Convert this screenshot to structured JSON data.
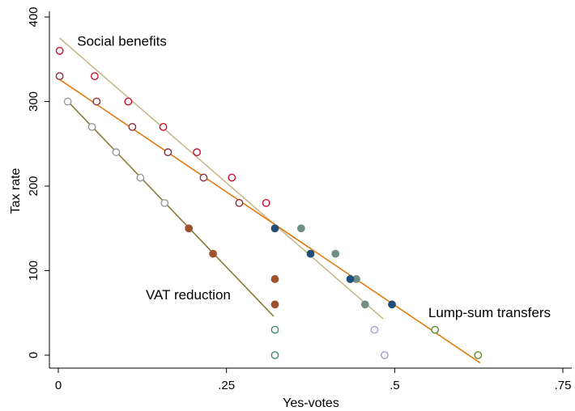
{
  "chart_data": {
    "type": "scatter",
    "xlabel": "Yes-votes",
    "ylabel": "Tax rate",
    "xlim": [
      0,
      0.75
    ],
    "ylim": [
      -20,
      410
    ],
    "x_ticks": [
      {
        "value": 0,
        "label": "0"
      },
      {
        "value": 0.25,
        "label": ".25"
      },
      {
        "value": 0.5,
        "label": ".5"
      },
      {
        "value": 0.75,
        "label": ".75"
      }
    ],
    "y_ticks": [
      {
        "value": 0,
        "label": "0"
      },
      {
        "value": 100,
        "label": "100"
      },
      {
        "value": 200,
        "label": "200"
      },
      {
        "value": 300,
        "label": "300"
      },
      {
        "value": 400,
        "label": "400"
      }
    ],
    "grid": false,
    "legend": "none",
    "annotations": [
      {
        "text": "Social benefits",
        "x": 0.028,
        "y": 366
      },
      {
        "text": "VAT reduction",
        "x": 0.13,
        "y": 66
      },
      {
        "text": "Lump-sum transfers",
        "x": 0.55,
        "y": 45
      }
    ],
    "series": [
      {
        "name": "Social benefits",
        "color": "#c8102e",
        "points": [
          {
            "x": 0.002,
            "y": 360,
            "hollow": true
          },
          {
            "x": 0.054,
            "y": 330,
            "hollow": true
          },
          {
            "x": 0.104,
            "y": 300,
            "hollow": true
          },
          {
            "x": 0.156,
            "y": 270,
            "hollow": true
          },
          {
            "x": 0.206,
            "y": 240,
            "hollow": true
          },
          {
            "x": 0.258,
            "y": 210,
            "hollow": true
          },
          {
            "x": 0.309,
            "y": 180,
            "hollow": true
          },
          {
            "x": 0.361,
            "y": 150,
            "hollow": false,
            "color": "#6f8f82"
          },
          {
            "x": 0.412,
            "y": 120,
            "hollow": false,
            "color": "#6f8f82"
          },
          {
            "x": 0.443,
            "y": 90,
            "hollow": false,
            "color": "#6f8f82"
          },
          {
            "x": 0.456,
            "y": 60,
            "hollow": false,
            "color": "#6f8f82"
          },
          {
            "x": 0.47,
            "y": 30,
            "hollow": true,
            "color": "#a99bd1"
          },
          {
            "x": 0.485,
            "y": 0,
            "hollow": true,
            "color": "#a99bd1"
          }
        ],
        "fit": {
          "x1": 0.002,
          "y1": 375,
          "x2": 0.483,
          "y2": 43,
          "color": "#c7b98a"
        }
      },
      {
        "name": "Lump-sum transfers",
        "color": "#8e2b3c",
        "points": [
          {
            "x": 0.002,
            "y": 330,
            "hollow": true
          },
          {
            "x": 0.057,
            "y": 300,
            "hollow": true
          },
          {
            "x": 0.11,
            "y": 270,
            "hollow": true
          },
          {
            "x": 0.163,
            "y": 240,
            "hollow": true
          },
          {
            "x": 0.216,
            "y": 210,
            "hollow": true
          },
          {
            "x": 0.269,
            "y": 180,
            "hollow": true
          },
          {
            "x": 0.322,
            "y": 150,
            "hollow": false,
            "color": "#1f4e79"
          },
          {
            "x": 0.375,
            "y": 120,
            "hollow": false,
            "color": "#1f4e79"
          },
          {
            "x": 0.434,
            "y": 90,
            "hollow": false,
            "color": "#1f4e79"
          },
          {
            "x": 0.496,
            "y": 60,
            "hollow": false,
            "color": "#1f4e79"
          },
          {
            "x": 0.56,
            "y": 30,
            "hollow": true,
            "color": "#5b8c2a"
          },
          {
            "x": 0.624,
            "y": 0,
            "hollow": true,
            "color": "#5b8c2a"
          }
        ],
        "fit": {
          "x1": 0.002,
          "y1": 326,
          "x2": 0.627,
          "y2": -9,
          "color": "#e07b10"
        }
      },
      {
        "name": "VAT reduction",
        "color": "#999999",
        "points": [
          {
            "x": 0.014,
            "y": 300,
            "hollow": true
          },
          {
            "x": 0.05,
            "y": 270,
            "hollow": true
          },
          {
            "x": 0.086,
            "y": 240,
            "hollow": true
          },
          {
            "x": 0.122,
            "y": 210,
            "hollow": true
          },
          {
            "x": 0.158,
            "y": 180,
            "hollow": true
          },
          {
            "x": 0.194,
            "y": 150,
            "hollow": false,
            "color": "#a0522d"
          },
          {
            "x": 0.23,
            "y": 120,
            "hollow": false,
            "color": "#a0522d"
          },
          {
            "x": 0.322,
            "y": 90,
            "hollow": false,
            "color": "#a0522d"
          },
          {
            "x": 0.322,
            "y": 60,
            "hollow": false,
            "color": "#a0522d"
          },
          {
            "x": 0.322,
            "y": 30,
            "hollow": true,
            "color": "#3a8c7a"
          },
          {
            "x": 0.322,
            "y": 0,
            "hollow": true,
            "color": "#3a8c7a"
          }
        ],
        "fit": {
          "x1": 0.012,
          "y1": 302,
          "x2": 0.32,
          "y2": 46,
          "color": "#8a7a3a"
        }
      }
    ]
  }
}
